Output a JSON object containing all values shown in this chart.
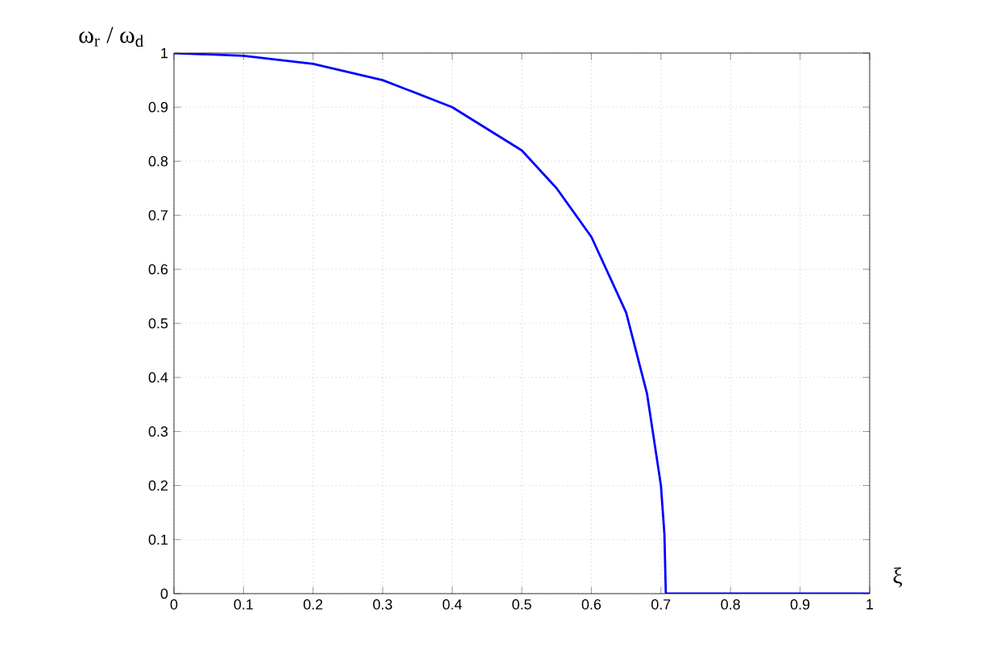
{
  "chart_data": {
    "type": "line",
    "xlabel": "ξ",
    "ylabel": "ω$_{r}$ / ω$_{d}$",
    "series": [
      {
        "color": "#0000ff",
        "x": [
          0,
          0.1,
          0.2,
          0.3,
          0.4,
          0.5,
          0.55,
          0.6,
          0.65,
          0.68,
          0.7,
          0.705,
          0.707,
          0.8,
          0.9,
          1
        ],
        "values": [
          1,
          0.995,
          0.98,
          0.95,
          0.9,
          0.82,
          0.75,
          0.66,
          0.52,
          0.37,
          0.2,
          0.11,
          0,
          0,
          0,
          0
        ]
      }
    ],
    "xlim": [
      0,
      1
    ],
    "ylim": [
      0,
      1
    ],
    "xticks": [
      0,
      0.1,
      0.2,
      0.3,
      0.4,
      0.5,
      0.6,
      0.7,
      0.8,
      0.9,
      1
    ],
    "yticks": [
      0,
      0.1,
      0.2,
      0.3,
      0.4,
      0.5,
      0.6,
      0.7,
      0.8,
      0.9,
      1
    ],
    "grid": true,
    "line_style": "solid",
    "marker": "none"
  }
}
